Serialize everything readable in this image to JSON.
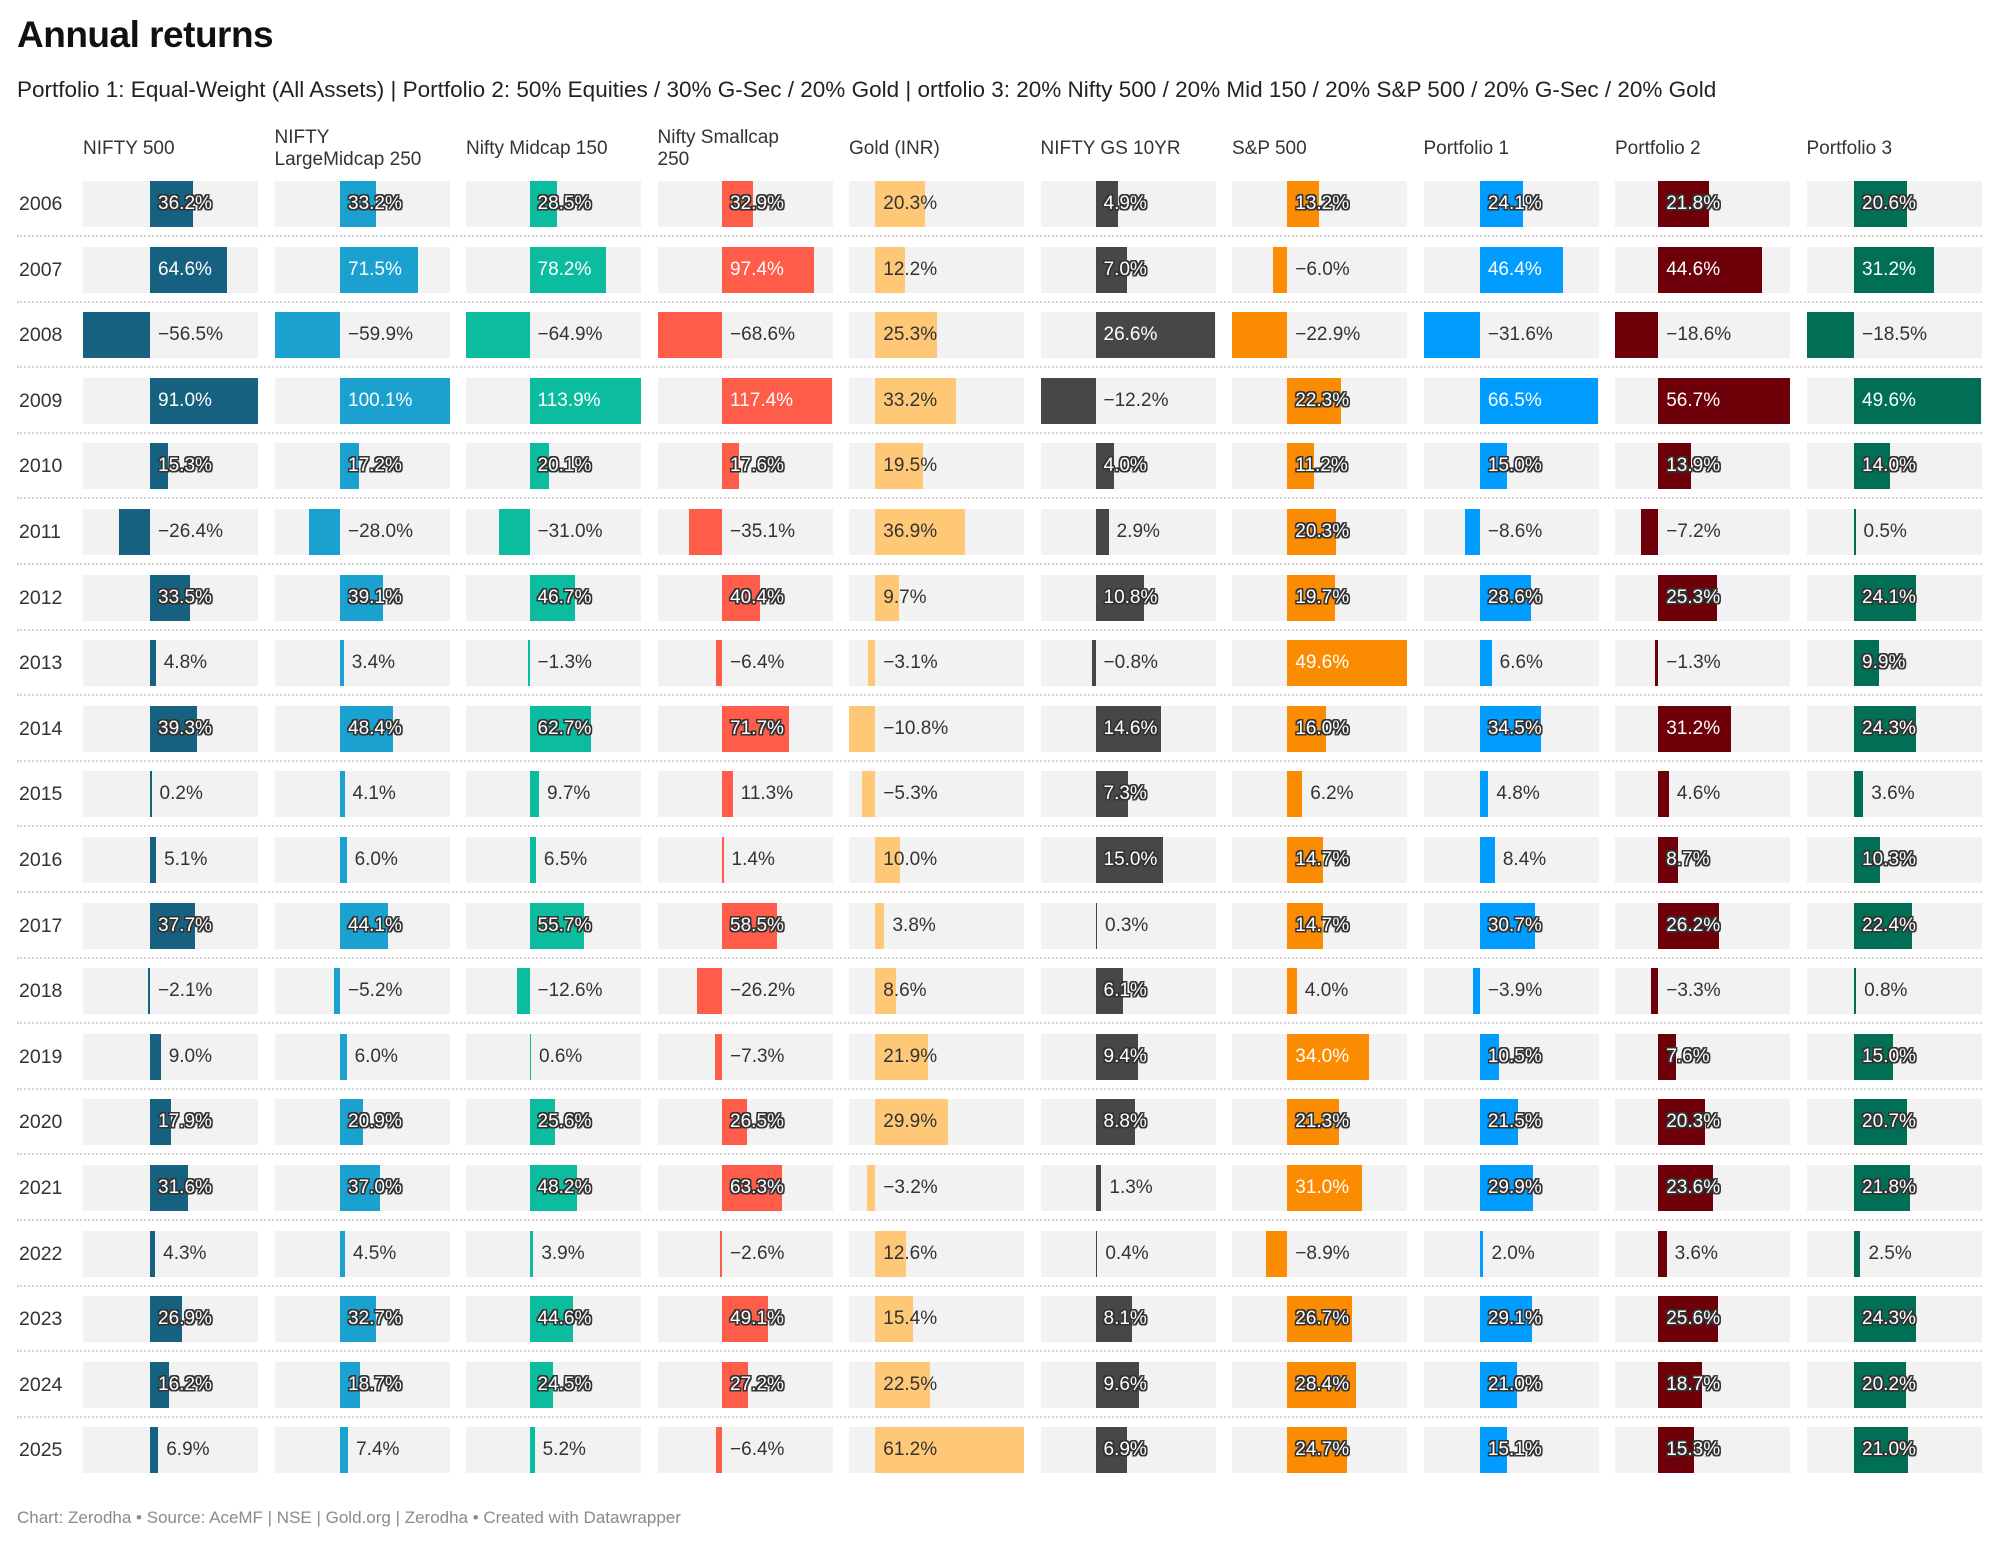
{
  "chart_data": {
    "type": "table",
    "title": "Annual returns",
    "subtitle": "Portfolio 1: Equal-Weight (All Assets) | Portfolio 2: 50% Equities / 30% G-Sec / 20% Gold | ortfolio 3: 20% Nifty 500 / 20% Mid 150 / 20% S&P 500 / 20% G-Sec / 20% Gold",
    "footer": "Chart: Zerodha • Source: AceMF | NSE | Gold.org | Zerodha • Created with Datawrapper",
    "unit": "%",
    "years": [
      "2006",
      "2007",
      "2008",
      "2009",
      "2010",
      "2011",
      "2012",
      "2013",
      "2014",
      "2015",
      "2016",
      "2017",
      "2018",
      "2019",
      "2020",
      "2021",
      "2022",
      "2023",
      "2024",
      "2025"
    ],
    "series": [
      {
        "name": "NIFTY 500",
        "color": "#176180",
        "values": [
          36.2,
          64.6,
          -56.5,
          91.0,
          15.3,
          -26.4,
          33.5,
          4.8,
          39.3,
          0.2,
          5.1,
          37.7,
          -2.1,
          9.0,
          17.9,
          31.6,
          4.3,
          26.9,
          16.2,
          6.9
        ]
      },
      {
        "name": "NIFTY LargeMidcap 250",
        "color": "#1aa1cf",
        "values": [
          33.2,
          71.5,
          -59.9,
          100.1,
          17.2,
          -28.0,
          39.1,
          3.4,
          48.4,
          4.1,
          6.0,
          44.1,
          -5.2,
          6.0,
          20.9,
          37.0,
          4.5,
          32.7,
          18.7,
          7.4
        ]
      },
      {
        "name": "Nifty Midcap 150",
        "color": "#0bbc9f",
        "values": [
          28.5,
          78.2,
          -64.9,
          113.9,
          20.1,
          -31.0,
          46.7,
          -1.3,
          62.7,
          9.7,
          6.5,
          55.7,
          -12.6,
          0.6,
          25.6,
          48.2,
          3.9,
          44.6,
          24.5,
          5.2
        ]
      },
      {
        "name": "Nifty Smallcap 250",
        "color": "#ff5c4a",
        "values": [
          32.9,
          97.4,
          -68.6,
          117.4,
          17.6,
          -35.1,
          40.4,
          -6.4,
          71.7,
          11.3,
          1.4,
          58.5,
          -26.2,
          -7.3,
          26.5,
          63.3,
          -2.6,
          49.1,
          27.2,
          -6.4
        ]
      },
      {
        "name": "Gold (INR)",
        "color": "#fec876",
        "values": [
          20.3,
          12.2,
          25.3,
          33.2,
          19.5,
          36.9,
          9.7,
          -3.1,
          -10.8,
          -5.3,
          10.0,
          3.8,
          8.6,
          21.9,
          29.9,
          -3.2,
          12.6,
          15.4,
          22.5,
          61.2
        ]
      },
      {
        "name": "NIFTY GS 10YR",
        "color": "#474747",
        "values": [
          4.9,
          7.0,
          26.6,
          -12.2,
          4.0,
          2.9,
          10.8,
          -0.8,
          14.6,
          7.3,
          15.0,
          0.3,
          6.1,
          9.4,
          8.8,
          1.3,
          0.4,
          8.1,
          9.6,
          6.9
        ]
      },
      {
        "name": "S&P 500",
        "color": "#fb8b00",
        "values": [
          13.2,
          -6.0,
          -22.9,
          22.3,
          11.2,
          20.3,
          19.7,
          49.6,
          16.0,
          6.2,
          14.7,
          14.7,
          4.0,
          34.0,
          21.3,
          31.0,
          -8.9,
          26.7,
          28.4,
          24.7
        ]
      },
      {
        "name": "Portfolio 1",
        "color": "#009cff",
        "values": [
          24.1,
          46.4,
          -31.6,
          66.5,
          15.0,
          -8.6,
          28.6,
          6.6,
          34.5,
          4.8,
          8.4,
          30.7,
          -3.9,
          10.5,
          21.5,
          29.9,
          2.0,
          29.1,
          21.0,
          15.1
        ]
      },
      {
        "name": "Portfolio 2",
        "color": "#6e0009",
        "values": [
          21.8,
          44.6,
          -18.6,
          56.7,
          13.9,
          -7.2,
          25.3,
          -1.3,
          31.2,
          4.6,
          8.7,
          26.2,
          -3.3,
          7.6,
          20.3,
          23.6,
          3.6,
          25.6,
          18.7,
          15.3
        ]
      },
      {
        "name": "Portfolio 3",
        "color": "#006f55",
        "values": [
          20.6,
          31.2,
          -18.5,
          49.6,
          14.0,
          0.5,
          24.1,
          9.9,
          24.3,
          3.6,
          10.3,
          22.4,
          0.8,
          15.0,
          20.7,
          21.8,
          2.5,
          24.3,
          20.2,
          21.0
        ]
      }
    ],
    "header_labels": [
      "NIFTY 500",
      "NIFTY\nLargeMidcap 250",
      "Nifty Midcap 150",
      "Nifty Smallcap\n250",
      "Gold (INR)",
      "NIFTY GS 10YR",
      "S&P 500",
      "Portfolio 1",
      "Portfolio 2",
      "Portfolio 3"
    ],
    "cell_background": "#f2f2f2"
  }
}
